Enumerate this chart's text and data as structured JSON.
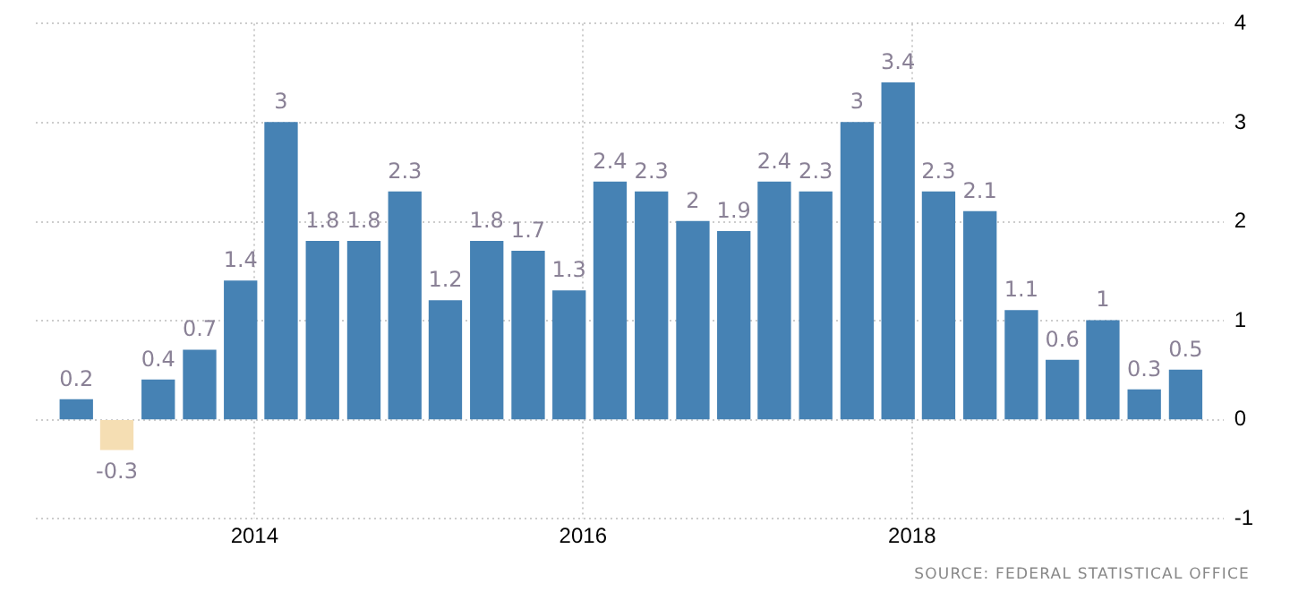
{
  "chart_data": {
    "type": "bar",
    "x": [
      "2012-12",
      "2013-03",
      "2013-06",
      "2013-09",
      "2013-12",
      "2014-03",
      "2014-06",
      "2014-09",
      "2014-12",
      "2015-03",
      "2015-06",
      "2015-09",
      "2015-12",
      "2016-03",
      "2016-06",
      "2016-09",
      "2016-12",
      "2017-03",
      "2017-06",
      "2017-09",
      "2017-12",
      "2018-03",
      "2018-06",
      "2018-09",
      "2018-12",
      "2019-03",
      "2019-06",
      "2019-09"
    ],
    "values": [
      0.2,
      -0.3,
      0.4,
      0.7,
      1.4,
      3,
      1.8,
      1.8,
      2.3,
      1.2,
      1.8,
      1.7,
      1.3,
      2.4,
      2.3,
      2,
      1.9,
      2.4,
      2.3,
      3,
      3.4,
      2.3,
      2.1,
      1.1,
      0.6,
      1,
      0.3,
      0.5
    ],
    "colors": [
      "#4682b4",
      "#f5deb3",
      "#4682b4",
      "#4682b4",
      "#4682b4",
      "#4682b4",
      "#4682b4",
      "#4682b4",
      "#4682b4",
      "#4682b4",
      "#4682b4",
      "#4682b4",
      "#4682b4",
      "#4682b4",
      "#4682b4",
      "#4682b4",
      "#4682b4",
      "#4682b4",
      "#4682b4",
      "#4682b4",
      "#4682b4",
      "#4682b4",
      "#4682b4",
      "#4682b4",
      "#4682b4",
      "#4682b4",
      "#4682b4",
      "#4682b4"
    ],
    "xlim": [
      "2012-09-02",
      "2019-11-24"
    ],
    "xticks": [
      {
        "value": "2014-01-01",
        "label": "2014"
      },
      {
        "value": "2016-01-01",
        "label": "2016"
      },
      {
        "value": "2018-01-01",
        "label": "2018"
      }
    ],
    "ylim": [
      -1,
      4
    ],
    "yticks": [
      -1,
      0,
      1,
      2,
      3,
      4
    ],
    "grid": true,
    "legend": false,
    "data_labels": true,
    "annotations": [
      "SOURCE: FEDERAL STATISTICAL OFFICE"
    ]
  }
}
